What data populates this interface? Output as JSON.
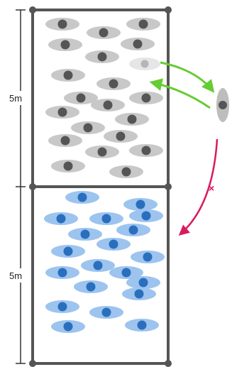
{
  "scale": {
    "upper_label": "5m",
    "lower_label": "5m"
  },
  "crossing": {
    "blocked_mark": "×"
  },
  "colors": {
    "frame": "#555555",
    "upper_cell_fill": "#c8c8c8",
    "upper_cell_core": "#555555",
    "lower_cell_fill": "#9cc4ee",
    "lower_cell_core": "#2a6fbd",
    "free_cell_fill": "#bdbdbd",
    "return_arrow": "#66cc33",
    "blocked_arrow": "#d81b60"
  },
  "icons": {
    "upper_cell": "gray-cell-icon",
    "lower_cell": "blue-cell-icon",
    "free_cell": "gray-cell-icon"
  }
}
